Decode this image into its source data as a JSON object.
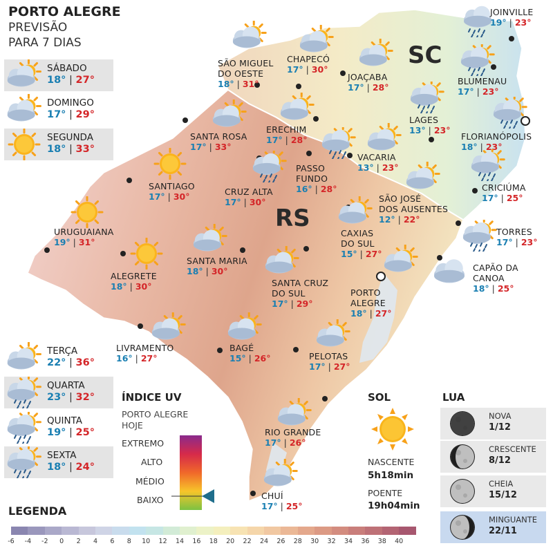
{
  "header": {
    "line1": "PORTO ALEGRE",
    "line2": "PREVISÃO",
    "line3": "PARA 7 DIAS"
  },
  "week": [
    {
      "day": "SÁBADO",
      "min": "18°",
      "max": "27°",
      "icon": "partly-cloudy-icon"
    },
    {
      "day": "DOMINGO",
      "min": "17°",
      "max": "29°",
      "icon": "partly-cloudy-icon"
    },
    {
      "day": "SEGUNDA",
      "min": "18°",
      "max": "33°",
      "icon": "sun-icon"
    },
    {
      "day": "TERÇA",
      "min": "22°",
      "max": "36°",
      "icon": "partly-cloudy-icon"
    },
    {
      "day": "QUARTA",
      "min": "23°",
      "max": "32°",
      "icon": "rain-sun-icon"
    },
    {
      "day": "QUINTA",
      "min": "19°",
      "max": "25°",
      "icon": "rain-sun-icon"
    },
    {
      "day": "SEXTA",
      "min": "18°",
      "max": "24°",
      "icon": "rain-sun-icon"
    }
  ],
  "states": {
    "rs": "RS",
    "sc": "SC"
  },
  "cities": [
    {
      "name": "JOINVILLE",
      "min": "19°",
      "max": "23°",
      "icon": "rain-cloud-icon"
    },
    {
      "name": "SÃO MIGUEL",
      "name2": "DO OESTE",
      "min": "18°",
      "max": "31°",
      "icon": "partly-cloudy-icon"
    },
    {
      "name": "CHAPECÓ",
      "min": "17°",
      "max": "30°",
      "icon": "partly-cloudy-icon"
    },
    {
      "name": "JOAÇABA",
      "min": "17°",
      "max": "28°",
      "icon": "partly-cloudy-icon"
    },
    {
      "name": "BLUMENAU",
      "min": "17°",
      "max": "23°",
      "icon": "rain-sun-icon"
    },
    {
      "name": "LAGES",
      "min": "13°",
      "max": "23°",
      "icon": "rain-sun-icon"
    },
    {
      "name": "FLORIANÓPOLIS",
      "min": "18°",
      "max": "23°",
      "icon": "rain-sun-icon"
    },
    {
      "name": "SANTA ROSA",
      "min": "17°",
      "max": "33°",
      "icon": "partly-cloudy-icon"
    },
    {
      "name": "ERECHIM",
      "min": "17°",
      "max": "28°",
      "icon": "partly-cloudy-icon"
    },
    {
      "name": "VACARIA",
      "min": "13°",
      "max": "23°",
      "icon": "partly-cloudy-icon"
    },
    {
      "name": "PASSO",
      "name2": "FUNDO",
      "min": "16°",
      "max": "28°",
      "icon": "rain-sun-icon"
    },
    {
      "name": "SANTIAGO",
      "min": "17°",
      "max": "30°",
      "icon": "sun-icon"
    },
    {
      "name": "CRUZ ALTA",
      "min": "17°",
      "max": "30°",
      "icon": "rain-sun-icon"
    },
    {
      "name": "CRICIÚMA",
      "min": "17°",
      "max": "25°",
      "icon": "rain-sun-icon"
    },
    {
      "name": "SÃO JOSÉ",
      "name2": "DOS AUSENTES",
      "min": "12°",
      "max": "22°",
      "icon": "partly-cloudy-icon"
    },
    {
      "name": "URUGUAIANA",
      "min": "19°",
      "max": "31°",
      "icon": "sun-icon"
    },
    {
      "name": "TORRES",
      "min": "17°",
      "max": "23°",
      "icon": "rain-sun-icon"
    },
    {
      "name": "CAXIAS",
      "name2": "DO SUL",
      "min": "15°",
      "max": "27°",
      "icon": "partly-cloudy-icon"
    },
    {
      "name": "SANTA MARIA",
      "min": "18°",
      "max": "30°",
      "icon": "partly-cloudy-icon"
    },
    {
      "name": "ALEGRETE",
      "min": "18°",
      "max": "30°",
      "icon": "sun-icon"
    },
    {
      "name": "CAPÃO DA",
      "name2": "CANOA",
      "min": "18°",
      "max": "25°",
      "icon": "cloud-icon"
    },
    {
      "name": "SANTA CRUZ",
      "name2": "DO SUL",
      "min": "17°",
      "max": "29°",
      "icon": "partly-cloudy-icon"
    },
    {
      "name": "PORTO",
      "name2": "ALEGRE",
      "min": "18°",
      "max": "27°",
      "icon": "partly-cloudy-icon"
    },
    {
      "name": "LIVRAMENTO",
      "min": "16°",
      "max": "27°",
      "icon": "partly-cloudy-icon"
    },
    {
      "name": "BAGÉ",
      "min": "15°",
      "max": "26°",
      "icon": "partly-cloudy-icon"
    },
    {
      "name": "PELOTAS",
      "min": "17°",
      "max": "27°",
      "icon": "partly-cloudy-icon"
    },
    {
      "name": "RIO GRANDE",
      "min": "17°",
      "max": "26°",
      "icon": "partly-cloudy-icon"
    },
    {
      "name": "CHUÍ",
      "min": "17°",
      "max": "25°",
      "icon": "partly-cloudy-icon"
    }
  ],
  "uv": {
    "title": "ÍNDICE UV",
    "sub1": "PORTO ALEGRE",
    "sub2": "HOJE",
    "levels": [
      "EXTREMO",
      "ALTO",
      "MÉDIO",
      "BAIXO"
    ],
    "today_level": "BAIXO"
  },
  "sol": {
    "title": "SOL",
    "rise_label": "NASCENTE",
    "rise": "5h18min",
    "set_label": "POENTE",
    "set": "19h04min"
  },
  "lua": {
    "title": "LUA",
    "phases": [
      {
        "name": "NOVA",
        "date": "1/12",
        "icon": "new-moon-icon"
      },
      {
        "name": "CRESCENTE",
        "date": "8/12",
        "icon": "first-quarter-moon-icon"
      },
      {
        "name": "CHEIA",
        "date": "15/12",
        "icon": "full-moon-icon"
      },
      {
        "name": "MINGUANTE",
        "date": "22/11",
        "icon": "last-quarter-moon-icon"
      }
    ]
  },
  "legend": {
    "title": "LEGENDA",
    "ticks": [
      "-6",
      "-4",
      "-2",
      "0",
      "2",
      "4",
      "6",
      "8",
      "10",
      "12",
      "14",
      "16",
      "18",
      "20",
      "22",
      "24",
      "26",
      "28",
      "30",
      "32",
      "34",
      "36",
      "38",
      "40"
    ],
    "colors": [
      "#8a86b0",
      "#9a97bc",
      "#aaa8c8",
      "#b9b8d3",
      "#c7c7dc",
      "#cfd4e6",
      "#c9dced",
      "#c2e2ef",
      "#c6e6e4",
      "#d2ebd7",
      "#e0f0cf",
      "#ecf2c7",
      "#f4efbd",
      "#f7e3b3",
      "#f5d6aa",
      "#f1c8a2",
      "#ebb896",
      "#e4a88c",
      "#dc9a84",
      "#d38c7f",
      "#c97e7b",
      "#be7177",
      "#b36473",
      "#a7576f"
    ]
  }
}
